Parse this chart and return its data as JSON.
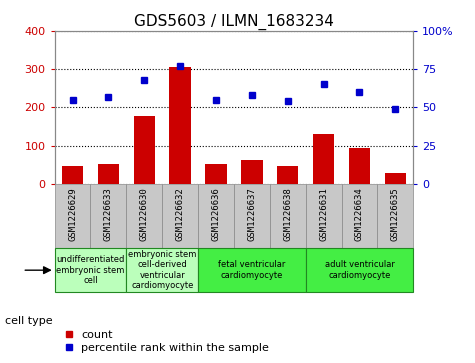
{
  "title": "GDS5603 / ILMN_1683234",
  "samples": [
    "GSM1226629",
    "GSM1226633",
    "GSM1226630",
    "GSM1226632",
    "GSM1226636",
    "GSM1226637",
    "GSM1226638",
    "GSM1226631",
    "GSM1226634",
    "GSM1226635"
  ],
  "counts": [
    48,
    53,
    178,
    305,
    52,
    63,
    48,
    130,
    93,
    28
  ],
  "percentiles": [
    55,
    57,
    68,
    77,
    55,
    58,
    54,
    65,
    60,
    49
  ],
  "left_ylim": [
    0,
    400
  ],
  "right_ylim": [
    0,
    100
  ],
  "left_yticks": [
    0,
    100,
    200,
    300,
    400
  ],
  "right_yticks": [
    0,
    25,
    50,
    75,
    100
  ],
  "right_yticklabels": [
    "0",
    "25",
    "50",
    "75",
    "100%"
  ],
  "bar_color": "#cc0000",
  "dot_color": "#0000cc",
  "grid_color": "#000000",
  "cell_types": [
    {
      "label": "undifferentiated\nembryonic stem\ncell",
      "spans": [
        0,
        2
      ],
      "color": "#bbffbb"
    },
    {
      "label": "embryonic stem\ncell-derived\nventricular\ncardiomyocyte",
      "spans": [
        2,
        4
      ],
      "color": "#bbffbb"
    },
    {
      "label": "fetal ventricular\ncardiomyocyte",
      "spans": [
        4,
        7
      ],
      "color": "#44ee44"
    },
    {
      "label": "adult ventricular\ncardiomyocyte",
      "spans": [
        7,
        10
      ],
      "color": "#44ee44"
    }
  ],
  "cell_type_label": "cell type",
  "legend_count_label": "count",
  "legend_percentile_label": "percentile rank within the sample",
  "bar_width": 0.6,
  "background_xtick": "#c8c8c8",
  "spine_color": "#888888",
  "figsize": [
    4.75,
    3.63
  ],
  "dpi": 100
}
